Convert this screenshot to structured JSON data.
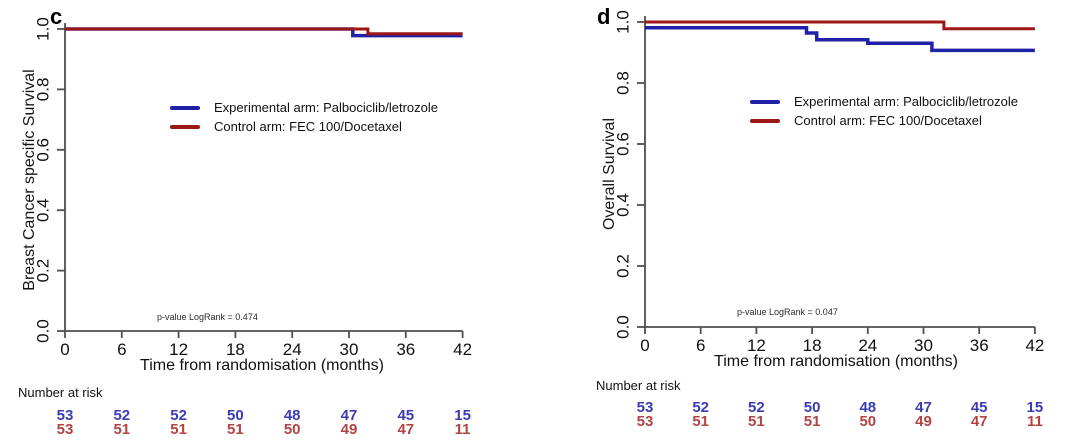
{
  "legend": {
    "experimental": "Experimental arm: Palbociclib/letrozole",
    "control": "Control arm: FEC 100/Docetaxel"
  },
  "colors": {
    "experimental_line": "#2121A8",
    "control_line": "#9E1717",
    "risk_experimental_text": "#3B3BB5",
    "risk_control_text": "#B34444",
    "axis": "#4F4F4F",
    "text": "#111111"
  },
  "chart_data": [
    {
      "type": "line",
      "panel_letter": "c",
      "ylabel": "Breast Cancer specific Survival",
      "xlabel": "Time from randomisation (months)",
      "annotation": "p-value LogRank = 0.474",
      "xlim": [
        0,
        42
      ],
      "ylim": [
        0.0,
        1.0
      ],
      "x_ticks": [
        0,
        6,
        12,
        18,
        24,
        30,
        36,
        42
      ],
      "y_ticks": [
        1.0,
        0.8,
        0.6,
        0.4,
        0.2,
        0.0
      ],
      "y_tick_labels": [
        "1.0",
        "0.8",
        "0.6",
        "0.4",
        "0.2",
        "0.0"
      ],
      "grid": false,
      "legend_position": "center-left of plot",
      "series": [
        {
          "name": "Experimental arm: Palbociclib/letrozole",
          "color": "#2121A8",
          "steps": [
            [
              0,
              1.0
            ],
            [
              30.4,
              1.0
            ],
            [
              30.4,
              0.978
            ],
            [
              42,
              0.978
            ]
          ]
        },
        {
          "name": "Control arm: FEC 100/Docetaxel",
          "color": "#9E1717",
          "steps": [
            [
              0,
              1.0
            ],
            [
              32.0,
              1.0
            ],
            [
              32.0,
              0.984
            ],
            [
              42,
              0.984
            ]
          ]
        }
      ],
      "number_at_risk": {
        "label": "Number at risk",
        "times": [
          0,
          6,
          12,
          18,
          24,
          30,
          36,
          42
        ],
        "rows": [
          {
            "arm": "experimental",
            "color": "#3B3BB5",
            "values": [
              "53",
              "52",
              "52",
              "50",
              "48",
              "47",
              "45",
              "15"
            ]
          },
          {
            "arm": "control",
            "color": "#B34444",
            "values": [
              "53",
              "51",
              "51",
              "51",
              "50",
              "49",
              "47",
              "11"
            ]
          }
        ]
      }
    },
    {
      "type": "line",
      "panel_letter": "d",
      "ylabel": "Overall Survival",
      "xlabel": "Time from randomisation (months)",
      "annotation": "p-value LogRank = 0.047",
      "xlim": [
        0,
        42
      ],
      "ylim": [
        0.0,
        1.0
      ],
      "x_ticks": [
        0,
        6,
        12,
        18,
        24,
        30,
        36,
        42
      ],
      "y_ticks": [
        1.0,
        0.8,
        0.6,
        0.4,
        0.2,
        0.0
      ],
      "y_tick_labels": [
        "1.0",
        "0.8",
        "0.6",
        "0.4",
        "0.2",
        "0.0"
      ],
      "grid": false,
      "legend_position": "center-left of plot",
      "series": [
        {
          "name": "Experimental arm: Palbociclib/letrozole",
          "color": "#2121A8",
          "steps": [
            [
              0,
              0.981
            ],
            [
              17.4,
              0.981
            ],
            [
              17.4,
              0.964
            ],
            [
              18.5,
              0.964
            ],
            [
              18.5,
              0.942
            ],
            [
              24.0,
              0.942
            ],
            [
              24.0,
              0.93
            ],
            [
              30.9,
              0.93
            ],
            [
              30.9,
              0.907
            ],
            [
              42,
              0.907
            ]
          ]
        },
        {
          "name": "Control arm: FEC 100/Docetaxel",
          "color": "#9E1717",
          "steps": [
            [
              0,
              1.0
            ],
            [
              32.2,
              1.0
            ],
            [
              32.2,
              0.978
            ],
            [
              42,
              0.978
            ]
          ]
        }
      ],
      "number_at_risk": {
        "label": "Number at risk",
        "times": [
          0,
          6,
          12,
          18,
          24,
          30,
          36,
          42
        ],
        "rows": [
          {
            "arm": "experimental",
            "color": "#3B3BB5",
            "values": [
              "53",
              "52",
              "52",
              "50",
              "48",
              "47",
              "45",
              "15"
            ]
          },
          {
            "arm": "control",
            "color": "#B34444",
            "values": [
              "53",
              "51",
              "51",
              "51",
              "50",
              "49",
              "47",
              "11"
            ]
          }
        ]
      }
    }
  ]
}
